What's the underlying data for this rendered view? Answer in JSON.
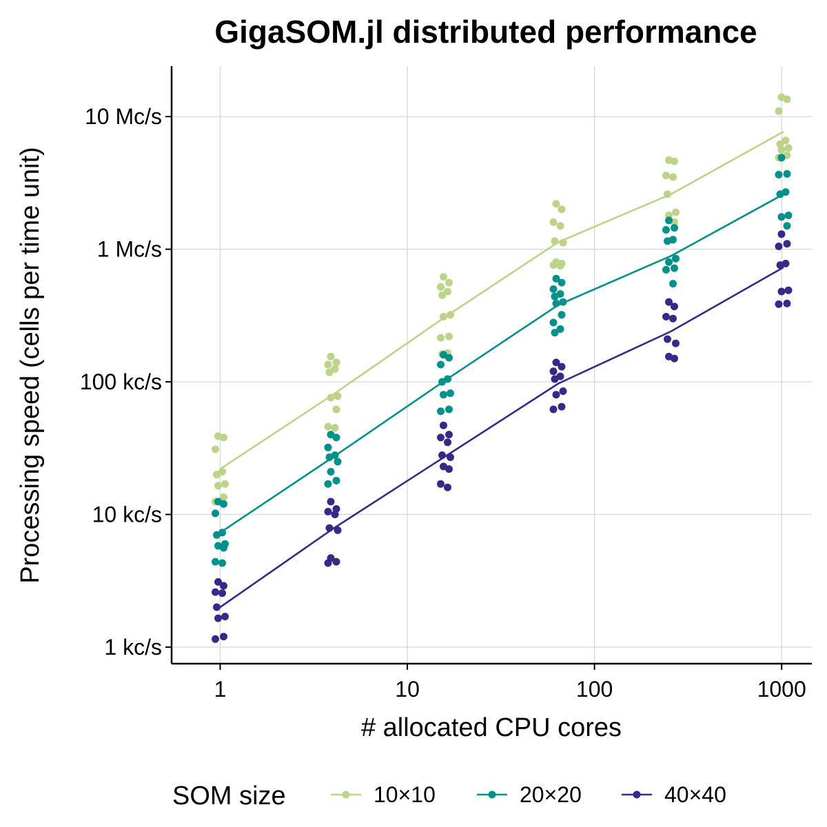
{
  "chart_data": {
    "type": "scatter",
    "title": "GigaSOM.jl distributed performance",
    "xlabel": "# allocated CPU cores",
    "ylabel": "Processing speed (cells per time unit)",
    "x_scale": "log",
    "y_scale": "log",
    "xlim": [
      0.55,
      1450
    ],
    "ylim": [
      750,
      24000000
    ],
    "x_ticks": [
      1,
      10,
      100,
      1000
    ],
    "x_tick_labels": [
      "1",
      "10",
      "100",
      "1000"
    ],
    "y_ticks": [
      1000,
      10000,
      100000,
      1000000,
      10000000
    ],
    "y_tick_labels": [
      "1 kc/s",
      "10 kc/s",
      "100 kc/s",
      "1 Mc/s",
      "10 Mc/s"
    ],
    "grid": true,
    "legend_title": "SOM size",
    "legend_position": "bottom",
    "series": [
      {
        "name": "10×10",
        "color": "#bcd38a",
        "line": [
          [
            1,
            22000
          ],
          [
            4,
            80000
          ],
          [
            16,
            310000
          ],
          [
            64,
            1130000
          ],
          [
            256,
            2600000
          ],
          [
            1024,
            7700000
          ]
        ],
        "points": [
          [
            1,
            39000
          ],
          [
            1,
            38000
          ],
          [
            1,
            31000
          ],
          [
            1,
            21000
          ],
          [
            1,
            20000
          ],
          [
            1,
            17000
          ],
          [
            1,
            16500
          ],
          [
            1,
            13500
          ],
          [
            1,
            12500
          ],
          [
            4,
            155000
          ],
          [
            4,
            140000
          ],
          [
            4,
            135000
          ],
          [
            4,
            125000
          ],
          [
            4,
            118000
          ],
          [
            4,
            78000
          ],
          [
            4,
            76000
          ],
          [
            4,
            62000
          ],
          [
            4,
            46000
          ],
          [
            4,
            45000
          ],
          [
            16,
            620000
          ],
          [
            16,
            560000
          ],
          [
            16,
            520000
          ],
          [
            16,
            480000
          ],
          [
            16,
            450000
          ],
          [
            16,
            320000
          ],
          [
            16,
            310000
          ],
          [
            16,
            220000
          ],
          [
            16,
            215000
          ],
          [
            16,
            165000
          ],
          [
            16,
            162000
          ],
          [
            64,
            2200000
          ],
          [
            64,
            2000000
          ],
          [
            64,
            1600000
          ],
          [
            64,
            1500000
          ],
          [
            64,
            1150000
          ],
          [
            64,
            1120000
          ],
          [
            64,
            800000
          ],
          [
            64,
            780000
          ],
          [
            64,
            760000
          ],
          [
            64,
            750000
          ],
          [
            256,
            4700000
          ],
          [
            256,
            4600000
          ],
          [
            256,
            3600000
          ],
          [
            256,
            3500000
          ],
          [
            256,
            2600000
          ],
          [
            256,
            1900000
          ],
          [
            256,
            1800000
          ],
          [
            256,
            1600000
          ],
          [
            1024,
            14000000
          ],
          [
            1024,
            13500000
          ],
          [
            1024,
            11000000
          ],
          [
            1024,
            6600000
          ],
          [
            1024,
            6200000
          ],
          [
            1024,
            5800000
          ],
          [
            1024,
            5600000
          ],
          [
            1024,
            5100000
          ],
          [
            1024,
            4900000
          ]
        ]
      },
      {
        "name": "20×20",
        "color": "#00918a",
        "line": [
          [
            1,
            7300
          ],
          [
            4,
            27000
          ],
          [
            16,
            103000
          ],
          [
            64,
            380000
          ],
          [
            256,
            890000
          ],
          [
            1024,
            2600000
          ]
        ],
        "points": [
          [
            1,
            12500
          ],
          [
            1,
            12000
          ],
          [
            1,
            10200
          ],
          [
            1,
            7300
          ],
          [
            1,
            7000
          ],
          [
            1,
            6000
          ],
          [
            1,
            5800
          ],
          [
            1,
            5600
          ],
          [
            1,
            4400
          ],
          [
            1,
            4300
          ],
          [
            4,
            40000
          ],
          [
            4,
            38000
          ],
          [
            4,
            32000
          ],
          [
            4,
            28000
          ],
          [
            4,
            27000
          ],
          [
            4,
            25000
          ],
          [
            4,
            21000
          ],
          [
            4,
            18000
          ],
          [
            4,
            17000
          ],
          [
            16,
            160000
          ],
          [
            16,
            152000
          ],
          [
            16,
            135000
          ],
          [
            16,
            105000
          ],
          [
            16,
            100000
          ],
          [
            16,
            82000
          ],
          [
            16,
            80000
          ],
          [
            16,
            62000
          ],
          [
            16,
            60000
          ],
          [
            64,
            600000
          ],
          [
            64,
            560000
          ],
          [
            64,
            500000
          ],
          [
            64,
            460000
          ],
          [
            64,
            440000
          ],
          [
            64,
            400000
          ],
          [
            64,
            390000
          ],
          [
            64,
            320000
          ],
          [
            64,
            280000
          ],
          [
            64,
            250000
          ],
          [
            64,
            235000
          ],
          [
            256,
            1650000
          ],
          [
            256,
            1450000
          ],
          [
            256,
            1400000
          ],
          [
            256,
            1180000
          ],
          [
            256,
            1150000
          ],
          [
            256,
            850000
          ],
          [
            256,
            800000
          ],
          [
            256,
            720000
          ],
          [
            256,
            700000
          ],
          [
            256,
            550000
          ],
          [
            1024,
            4900000
          ],
          [
            1024,
            3700000
          ],
          [
            1024,
            3650000
          ],
          [
            1024,
            2700000
          ],
          [
            1024,
            2600000
          ],
          [
            1024,
            1800000
          ],
          [
            1024,
            1750000
          ],
          [
            1024,
            1500000
          ]
        ]
      },
      {
        "name": "40×40",
        "color": "#352a87",
        "line": [
          [
            1,
            2000
          ],
          [
            4,
            7800
          ],
          [
            16,
            27500
          ],
          [
            64,
            97000
          ],
          [
            256,
            240000
          ],
          [
            1024,
            730000
          ]
        ],
        "points": [
          [
            1,
            3100
          ],
          [
            1,
            2900
          ],
          [
            1,
            2600
          ],
          [
            1,
            2550
          ],
          [
            1,
            2000
          ],
          [
            1,
            1700
          ],
          [
            1,
            1650
          ],
          [
            1,
            1200
          ],
          [
            1,
            1150
          ],
          [
            4,
            12500
          ],
          [
            4,
            11000
          ],
          [
            4,
            10500
          ],
          [
            4,
            10000
          ],
          [
            4,
            7900
          ],
          [
            4,
            7600
          ],
          [
            4,
            4700
          ],
          [
            4,
            4400
          ],
          [
            4,
            4300
          ],
          [
            16,
            47000
          ],
          [
            16,
            40000
          ],
          [
            16,
            38000
          ],
          [
            16,
            35000
          ],
          [
            16,
            28000
          ],
          [
            16,
            27000
          ],
          [
            16,
            23000
          ],
          [
            16,
            22000
          ],
          [
            16,
            17000
          ],
          [
            16,
            16000
          ],
          [
            64,
            140000
          ],
          [
            64,
            130000
          ],
          [
            64,
            120000
          ],
          [
            64,
            110000
          ],
          [
            64,
            105000
          ],
          [
            64,
            85000
          ],
          [
            64,
            80000
          ],
          [
            64,
            65000
          ],
          [
            64,
            62000
          ],
          [
            256,
            400000
          ],
          [
            256,
            370000
          ],
          [
            256,
            310000
          ],
          [
            256,
            300000
          ],
          [
            256,
            210000
          ],
          [
            256,
            195000
          ],
          [
            256,
            155000
          ],
          [
            256,
            150000
          ],
          [
            1024,
            1300000
          ],
          [
            1024,
            1100000
          ],
          [
            1024,
            1050000
          ],
          [
            1024,
            780000
          ],
          [
            1024,
            760000
          ],
          [
            1024,
            490000
          ],
          [
            1024,
            480000
          ],
          [
            1024,
            390000
          ],
          [
            1024,
            385000
          ]
        ]
      }
    ]
  }
}
